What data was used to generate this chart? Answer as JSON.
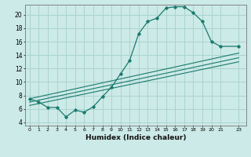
{
  "xlabel": "Humidex (Indice chaleur)",
  "bg_color": "#cceae7",
  "grid_color": "#aad4d0",
  "line_color": "#1a7a6e",
  "xlim": [
    -0.5,
    23.8
  ],
  "ylim": [
    3.5,
    21.5
  ],
  "y_ticks": [
    4,
    6,
    8,
    10,
    12,
    14,
    16,
    18,
    20
  ],
  "x_ticks": [
    0,
    1,
    2,
    3,
    4,
    5,
    6,
    7,
    8,
    9,
    10,
    11,
    12,
    13,
    14,
    15,
    16,
    17,
    18,
    19,
    20,
    21,
    23
  ],
  "curve_x": [
    0,
    1,
    2,
    3,
    4,
    5,
    6,
    7,
    8,
    9,
    10,
    11,
    12,
    13,
    14,
    15,
    16,
    17,
    18,
    19,
    20,
    21,
    23
  ],
  "curve_y": [
    7.5,
    7.0,
    6.2,
    6.2,
    4.8,
    5.8,
    5.5,
    6.3,
    7.8,
    9.2,
    11.2,
    13.2,
    17.2,
    19.0,
    19.5,
    21.0,
    21.2,
    21.2,
    20.3,
    19.0,
    16.0,
    15.3,
    15.3
  ],
  "ref_lines": [
    {
      "x0": 0,
      "y0": 6.5,
      "x1": 23,
      "y1": 13.0
    },
    {
      "x0": 0,
      "y0": 7.0,
      "x1": 23,
      "y1": 13.6
    },
    {
      "x0": 0,
      "y0": 7.5,
      "x1": 23,
      "y1": 14.3
    }
  ]
}
